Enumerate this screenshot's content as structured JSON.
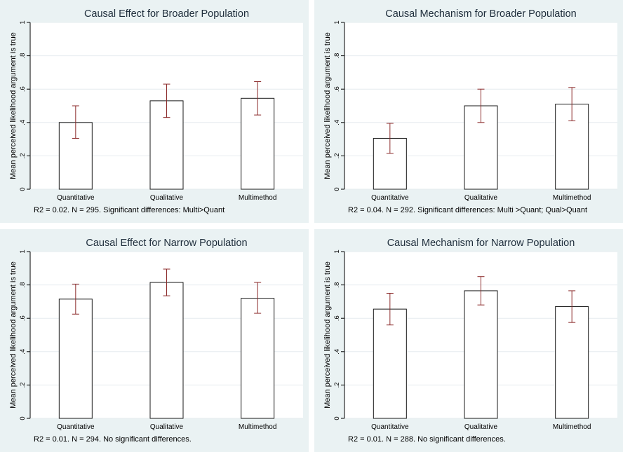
{
  "chart_data": [
    {
      "type": "bar",
      "title": "Causal Effect for Broader Population",
      "ylabel": "Mean perceived likelihood argument is true",
      "categories": [
        "Quantitative",
        "Qualitative",
        "Multimethod"
      ],
      "values": [
        0.4,
        0.53,
        0.545
      ],
      "ci_low": [
        0.305,
        0.43,
        0.445
      ],
      "ci_high": [
        0.5,
        0.63,
        0.645
      ],
      "ylim": [
        0,
        1
      ],
      "yticks": [
        0,
        0.2,
        0.4,
        0.6,
        0.8,
        1
      ],
      "ytick_labels": [
        "0",
        ".2",
        ".4",
        ".6",
        ".8",
        "1"
      ],
      "grid": true,
      "note": "R2 = 0.02. N = 295. Significant differences: Multi>Quant"
    },
    {
      "type": "bar",
      "title": "Causal Mechanism for Broader Population",
      "ylabel": "Mean perceived likelihood argument is true",
      "categories": [
        "Quantitative",
        "Qualitative",
        "Multimethod"
      ],
      "values": [
        0.305,
        0.5,
        0.51
      ],
      "ci_low": [
        0.215,
        0.4,
        0.41
      ],
      "ci_high": [
        0.395,
        0.6,
        0.61
      ],
      "ylim": [
        0,
        1
      ],
      "yticks": [
        0,
        0.2,
        0.4,
        0.6,
        0.8,
        1
      ],
      "ytick_labels": [
        "0",
        ".2",
        ".4",
        ".6",
        ".8",
        "1"
      ],
      "grid": true,
      "note": "R2 = 0.04. N = 292. Significant differences: Multi >Quant; Qual>Quant"
    },
    {
      "type": "bar",
      "title": "Causal Effect for Narrow Population",
      "ylabel": "Mean perceived likelihood argument is true",
      "categories": [
        "Quantitative",
        "Qualitative",
        "Multimethod"
      ],
      "values": [
        0.715,
        0.815,
        0.72
      ],
      "ci_low": [
        0.625,
        0.735,
        0.63
      ],
      "ci_high": [
        0.805,
        0.895,
        0.815
      ],
      "ylim": [
        0,
        1
      ],
      "yticks": [
        0,
        0.2,
        0.4,
        0.6,
        0.8,
        1
      ],
      "ytick_labels": [
        "0",
        ".2",
        ".4",
        ".6",
        ".8",
        "1"
      ],
      "grid": true,
      "note": "R2 = 0.01. N = 294. No significant differences."
    },
    {
      "type": "bar",
      "title": "Causal Mechanism for Narrow Population",
      "ylabel": "Mean perceived likelihood argument is true",
      "categories": [
        "Quantitative",
        "Qualitative",
        "Multimethod"
      ],
      "values": [
        0.655,
        0.765,
        0.67
      ],
      "ci_low": [
        0.56,
        0.68,
        0.575
      ],
      "ci_high": [
        0.75,
        0.85,
        0.765
      ],
      "ylim": [
        0,
        1
      ],
      "yticks": [
        0,
        0.2,
        0.4,
        0.6,
        0.8,
        1
      ],
      "ytick_labels": [
        "0",
        ".2",
        ".4",
        ".6",
        ".8",
        "1"
      ],
      "grid": true,
      "note": "R2 =  0.01. N = 288. No significant differences."
    }
  ],
  "colors": {
    "panel_background": "#eaf2f3",
    "plot_background": "#ffffff",
    "bar_fill": "#ffffff",
    "bar_outline": "#1a1a1a",
    "error_bar": "#8b2a2a",
    "gridline": "#e6ecef",
    "title": "#1e2d3b"
  }
}
